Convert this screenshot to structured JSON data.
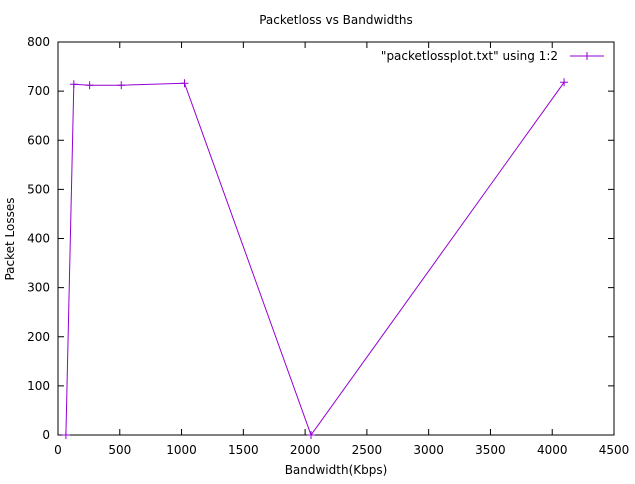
{
  "chart_data": {
    "type": "line",
    "title": "Packetloss vs Bandwidths",
    "xlabel": "Bandwidth(Kbps)",
    "ylabel": "Packet Losses",
    "xlim": [
      0,
      4500
    ],
    "ylim": [
      0,
      800
    ],
    "xticks": [
      0,
      500,
      1000,
      1500,
      2000,
      2500,
      3000,
      3500,
      4000,
      4500
    ],
    "yticks": [
      0,
      100,
      200,
      300,
      400,
      500,
      600,
      700,
      800
    ],
    "grid": false,
    "legend_position": "top-right",
    "series": [
      {
        "name": "\"packetlossplot.txt\" using 1:2",
        "color": "#9400d3",
        "marker": "plus",
        "x": [
          64,
          128,
          256,
          512,
          1024,
          2048,
          4096
        ],
        "y": [
          0,
          714,
          712,
          712,
          716,
          0,
          718
        ]
      }
    ]
  }
}
